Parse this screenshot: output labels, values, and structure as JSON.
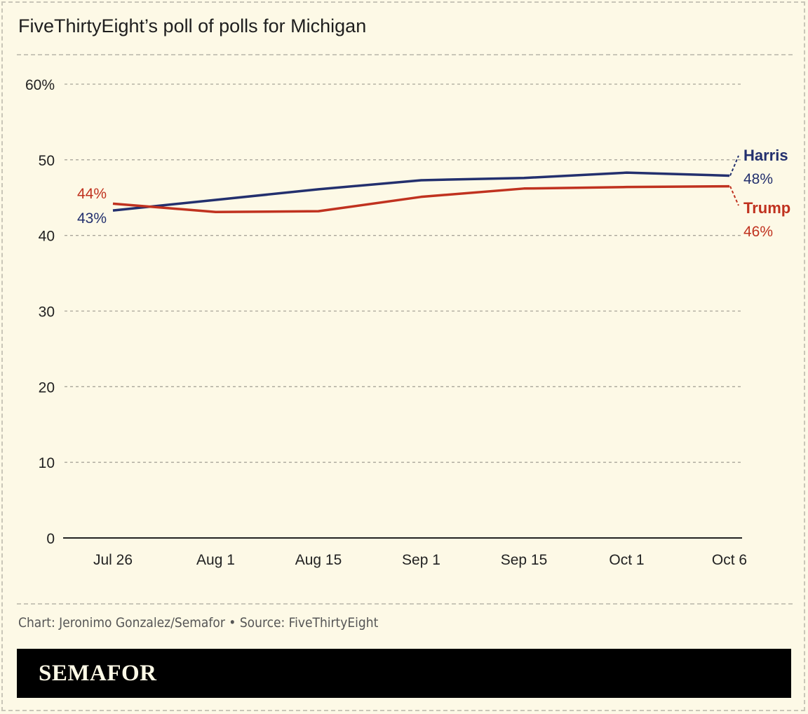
{
  "title": "FiveThirtyEight’s poll of polls for Michigan",
  "credit": "Chart: Jeronimo Gonzalez/Semafor • Source: FiveThirtyEight",
  "brand": "SEMAFOR",
  "colors": {
    "harris": "#23306e",
    "trump": "#c0321f",
    "background": "#fdf9e6"
  },
  "chart_data": {
    "type": "line",
    "title": "FiveThirtyEight’s poll of polls for Michigan",
    "categories": [
      "Jul 26",
      "Aug 1",
      "Aug 15",
      "Sep 1",
      "Sep 15",
      "Oct 1",
      "Oct 6"
    ],
    "ylim": [
      0,
      60
    ],
    "yticks": [
      0,
      10,
      20,
      30,
      40,
      50,
      60
    ],
    "ytick_labels": [
      "0",
      "10",
      "20",
      "30",
      "40",
      "50",
      "60%"
    ],
    "grid": true,
    "series": [
      {
        "name": "Harris",
        "color": "#23306e",
        "values": [
          43.3,
          44.7,
          46.1,
          47.3,
          47.6,
          48.3,
          47.9
        ],
        "start_label": "43%",
        "end_label": "48%"
      },
      {
        "name": "Trump",
        "color": "#c0321f",
        "values": [
          44.2,
          43.1,
          43.2,
          45.1,
          46.2,
          46.4,
          46.5
        ],
        "start_label": "44%",
        "end_label": "46%"
      }
    ]
  }
}
